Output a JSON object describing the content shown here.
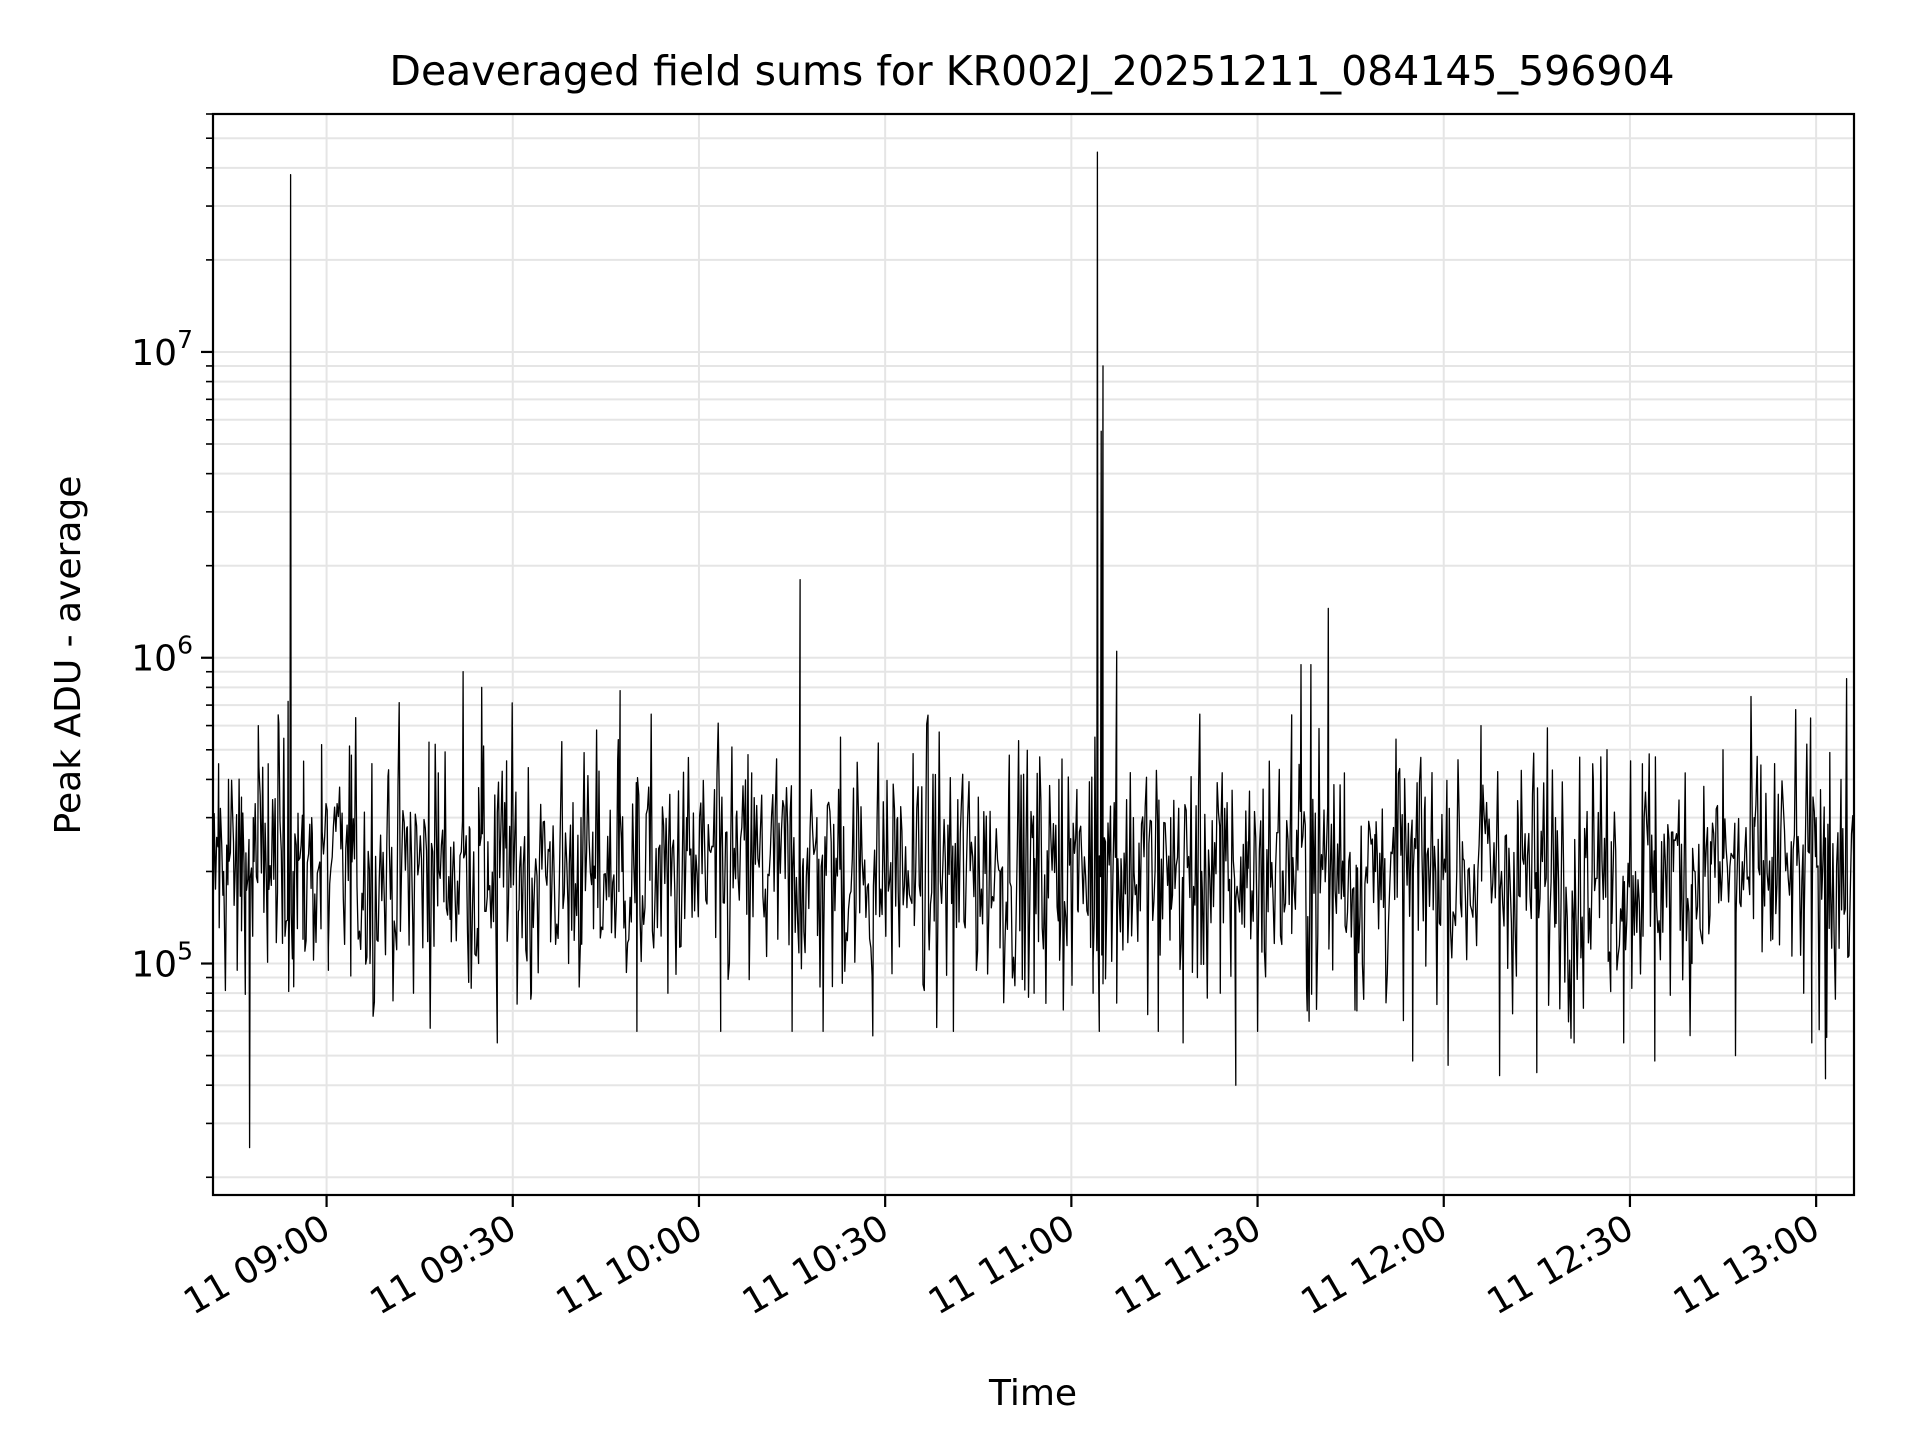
{
  "chart_data": {
    "type": "line",
    "title": "Deaveraged field sums for KR002J_20251211_084145_596904",
    "xlabel": "Time",
    "ylabel": "Peak ADU - average",
    "yscale": "log",
    "grid": true,
    "grid_color": "#e5e5e5",
    "line_color": "#000000",
    "xlim_minutes": [
      521.7,
      786.1
    ],
    "ylim": [
      17500,
      60000000
    ],
    "x_ticks": [
      {
        "minute": 540,
        "label": "11 09:00"
      },
      {
        "minute": 570,
        "label": "11 09:30"
      },
      {
        "minute": 600,
        "label": "11 10:00"
      },
      {
        "minute": 630,
        "label": "11 10:30"
      },
      {
        "minute": 660,
        "label": "11 11:00"
      },
      {
        "minute": 690,
        "label": "11 11:30"
      },
      {
        "minute": 720,
        "label": "11 12:00"
      },
      {
        "minute": 750,
        "label": "11 12:30"
      },
      {
        "minute": 780,
        "label": "11 13:00"
      }
    ],
    "y_ticks": [
      {
        "value": 100000,
        "base": "10",
        "exp": "5"
      },
      {
        "value": 1000000,
        "base": "10",
        "exp": "6"
      },
      {
        "value": 10000000,
        "base": "10",
        "exp": "7"
      }
    ],
    "baseline": {
      "start_minute": 521.7,
      "end_minute": 786.1,
      "step_minutes": 0.2,
      "median": 200000,
      "spread_decades": 0.2
    },
    "series": [
      {
        "name": "Peak ADU - average",
        "points": [
          [
            521.7,
            130000
          ],
          [
            522.6,
            450000
          ],
          [
            523.4,
            200000
          ],
          [
            524.2,
            400000
          ],
          [
            525.0,
            250000
          ],
          [
            525.6,
            95000
          ],
          [
            526.3,
            350000
          ],
          [
            527.0,
            230000
          ],
          [
            527.6,
            25000
          ],
          [
            528.2,
            300000
          ],
          [
            529.0,
            600000
          ],
          [
            529.8,
            260000
          ],
          [
            530.6,
            450000
          ],
          [
            531.4,
            300000
          ],
          [
            532.2,
            650000
          ],
          [
            533.0,
            300000
          ],
          [
            533.8,
            720000
          ],
          [
            534.2,
            38000000
          ],
          [
            534.6,
            200000
          ],
          [
            535.4,
            310000
          ],
          [
            536.2,
            120000
          ],
          [
            537.6,
            300000
          ],
          [
            539.2,
            520000
          ],
          [
            540.3,
            95000
          ],
          [
            544.0,
            480000
          ],
          [
            547.0,
            100000
          ],
          [
            550.0,
            430000
          ],
          [
            553.0,
            280000
          ],
          [
            554.0,
            80000
          ],
          [
            556.5,
            530000
          ],
          [
            558.0,
            420000
          ],
          [
            560.0,
            240000
          ],
          [
            562.0,
            900000
          ],
          [
            563.0,
            280000
          ],
          [
            564.5,
            100000
          ],
          [
            565.0,
            800000
          ],
          [
            566.0,
            250000
          ],
          [
            567.5,
            55000
          ],
          [
            569.0,
            460000
          ],
          [
            571.0,
            150000
          ],
          [
            573.0,
            80000
          ],
          [
            576.0,
            250000
          ],
          [
            579.0,
            100000
          ],
          [
            581.0,
            300000
          ],
          [
            583.0,
            130000
          ],
          [
            587.0,
            540000
          ],
          [
            587.3,
            780000
          ],
          [
            587.6,
            200000
          ],
          [
            590.0,
            60000
          ],
          [
            592.0,
            300000
          ],
          [
            595.0,
            80000
          ],
          [
            598.0,
            300000
          ],
          [
            600.0,
            220000
          ],
          [
            603.5,
            60000
          ],
          [
            606.0,
            300000
          ],
          [
            608.5,
            420000
          ],
          [
            611.0,
            150000
          ],
          [
            614.0,
            320000
          ],
          [
            615.0,
            60000
          ],
          [
            616.3,
            1800000
          ],
          [
            616.8,
            220000
          ],
          [
            619.0,
            300000
          ],
          [
            620.0,
            60000
          ],
          [
            622.8,
            550000
          ],
          [
            625.0,
            200000
          ],
          [
            628.0,
            58000
          ],
          [
            632.0,
            300000
          ],
          [
            637.0,
            130000
          ],
          [
            641.0,
            60000
          ],
          [
            645.0,
            350000
          ],
          [
            648.5,
            200000
          ],
          [
            650.0,
            480000
          ],
          [
            654.0,
            80000
          ],
          [
            658.0,
            400000
          ],
          [
            661.0,
            150000
          ],
          [
            663.5,
            80000
          ],
          [
            663.8,
            550000
          ],
          [
            664.2,
            45000000
          ],
          [
            664.5,
            60000
          ],
          [
            664.8,
            5500000
          ],
          [
            665.1,
            9000000
          ],
          [
            665.5,
            250000
          ],
          [
            667.3,
            1050000
          ],
          [
            668.0,
            220000
          ],
          [
            670.0,
            300000
          ],
          [
            674.0,
            60000
          ],
          [
            676.0,
            300000
          ],
          [
            678.0,
            55000
          ],
          [
            681.0,
            200000
          ],
          [
            684.0,
            80000
          ],
          [
            686.5,
            40000
          ],
          [
            688.5,
            250000
          ],
          [
            690.0,
            60000
          ],
          [
            692.0,
            300000
          ],
          [
            694.0,
            200000
          ],
          [
            695.5,
            650000
          ],
          [
            697.0,
            950000
          ],
          [
            698.0,
            70000
          ],
          [
            698.6,
            950000
          ],
          [
            700.0,
            320000
          ],
          [
            701.4,
            1450000
          ],
          [
            702.0,
            200000
          ],
          [
            704.0,
            420000
          ],
          [
            706.0,
            70000
          ],
          [
            709.0,
            200000
          ],
          [
            713.0,
            300000
          ],
          [
            715.0,
            48000
          ],
          [
            717.0,
            350000
          ],
          [
            720.0,
            200000
          ],
          [
            723.0,
            250000
          ],
          [
            726.0,
            600000
          ],
          [
            729.0,
            43000
          ],
          [
            732.0,
            300000
          ],
          [
            735.0,
            44000
          ],
          [
            738.0,
            300000
          ],
          [
            741.0,
            55000
          ],
          [
            744.0,
            450000
          ],
          [
            747.0,
            250000
          ],
          [
            749.0,
            55000
          ],
          [
            752.0,
            450000
          ],
          [
            754.0,
            48000
          ],
          [
            757.0,
            200000
          ],
          [
            760.0,
            100000
          ],
          [
            763.0,
            250000
          ],
          [
            765.0,
            500000
          ],
          [
            767.0,
            50000
          ],
          [
            770.0,
            300000
          ],
          [
            773.0,
            120000
          ],
          [
            776.0,
            250000
          ],
          [
            778.0,
            80000
          ],
          [
            779.3,
            55000
          ],
          [
            780.0,
            300000
          ],
          [
            781.5,
            42000
          ],
          [
            782.2,
            490000
          ],
          [
            783.0,
            95000
          ],
          [
            784.0,
            400000
          ],
          [
            785.0,
            200000
          ],
          [
            786.1,
            200000
          ]
        ]
      }
    ]
  }
}
